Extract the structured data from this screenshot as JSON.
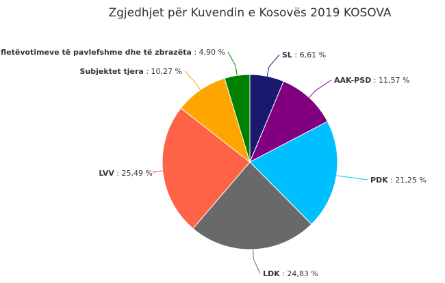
{
  "chart_data": {
    "type": "pie",
    "title": "Zgjedhjet për Kuvendin e Kosovës 2019 KOSOVA",
    "slices": [
      {
        "name": "SL",
        "value": 6.61,
        "label": "6,61 %",
        "color": "#191970"
      },
      {
        "name": "AAK-PSD",
        "value": 11.57,
        "label": "11,57 %",
        "color": "#800080"
      },
      {
        "name": "PDK",
        "value": 21.25,
        "label": "21,25 %",
        "color": "#00bfff"
      },
      {
        "name": "LDK",
        "value": 24.83,
        "label": "24,83 %",
        "color": "#696969"
      },
      {
        "name": "LVV",
        "value": 25.49,
        "label": "25,49 %",
        "color": "#ff6347"
      },
      {
        "name": "Subjektet tjera",
        "value": 10.27,
        "label": "10,27 %",
        "color": "#ffa500"
      },
      {
        "name": "Numri i fletëvotimeve të pavlefshme dhe të zbrazëta",
        "value": 4.9,
        "label": "4,90 %",
        "color": "#008000"
      }
    ]
  }
}
